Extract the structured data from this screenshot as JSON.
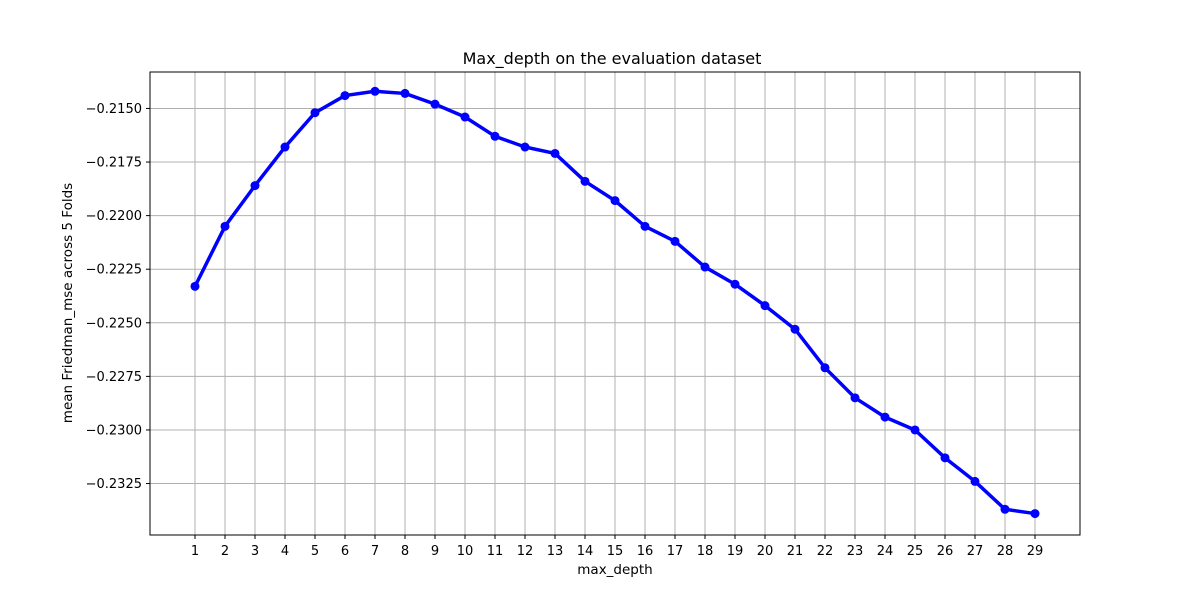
{
  "chart_data": {
    "type": "line",
    "title": "Max_depth on the evaluation dataset",
    "xlabel": "max_depth",
    "ylabel": "mean Friedman_mse across 5 Folds",
    "x": [
      1,
      2,
      3,
      4,
      5,
      6,
      7,
      8,
      9,
      10,
      11,
      12,
      13,
      14,
      15,
      16,
      17,
      18,
      19,
      20,
      21,
      22,
      23,
      24,
      25,
      26,
      27,
      28,
      29
    ],
    "x_tick_labels": [
      "1",
      "2",
      "3",
      "4",
      "5",
      "6",
      "7",
      "8",
      "9",
      "10",
      "11",
      "12",
      "13",
      "14",
      "15",
      "16",
      "17",
      "18",
      "19",
      "20",
      "21",
      "22",
      "23",
      "24",
      "25",
      "26",
      "27",
      "28",
      "29"
    ],
    "series": [
      {
        "values": [
          -0.2233,
          -0.2205,
          -0.2186,
          -0.2168,
          -0.2152,
          -0.2144,
          -0.2142,
          -0.2143,
          -0.2148,
          -0.2154,
          -0.2163,
          -0.2168,
          -0.2171,
          -0.2184,
          -0.2193,
          -0.2205,
          -0.2212,
          -0.2224,
          -0.2232,
          -0.2242,
          -0.2253,
          -0.2271,
          -0.2285,
          -0.2294,
          -0.23,
          -0.2313,
          -0.2324,
          -0.2337,
          -0.2339
        ],
        "color": "#0000ff",
        "marker": "circle"
      }
    ],
    "y_ticks": [
      -0.2325,
      -0.23,
      -0.2275,
      -0.225,
      -0.2225,
      -0.22,
      -0.2175,
      -0.215
    ],
    "y_tick_labels": [
      "−0.2325",
      "−0.2300",
      "−0.2275",
      "−0.2250",
      "−0.2225",
      "−0.2200",
      "−0.2175",
      "−0.2150"
    ],
    "xlim": [
      -0.5,
      30.5
    ],
    "ylim": [
      -0.2349,
      -0.2133
    ],
    "grid": true,
    "grid_color": "#b0b0b0"
  }
}
